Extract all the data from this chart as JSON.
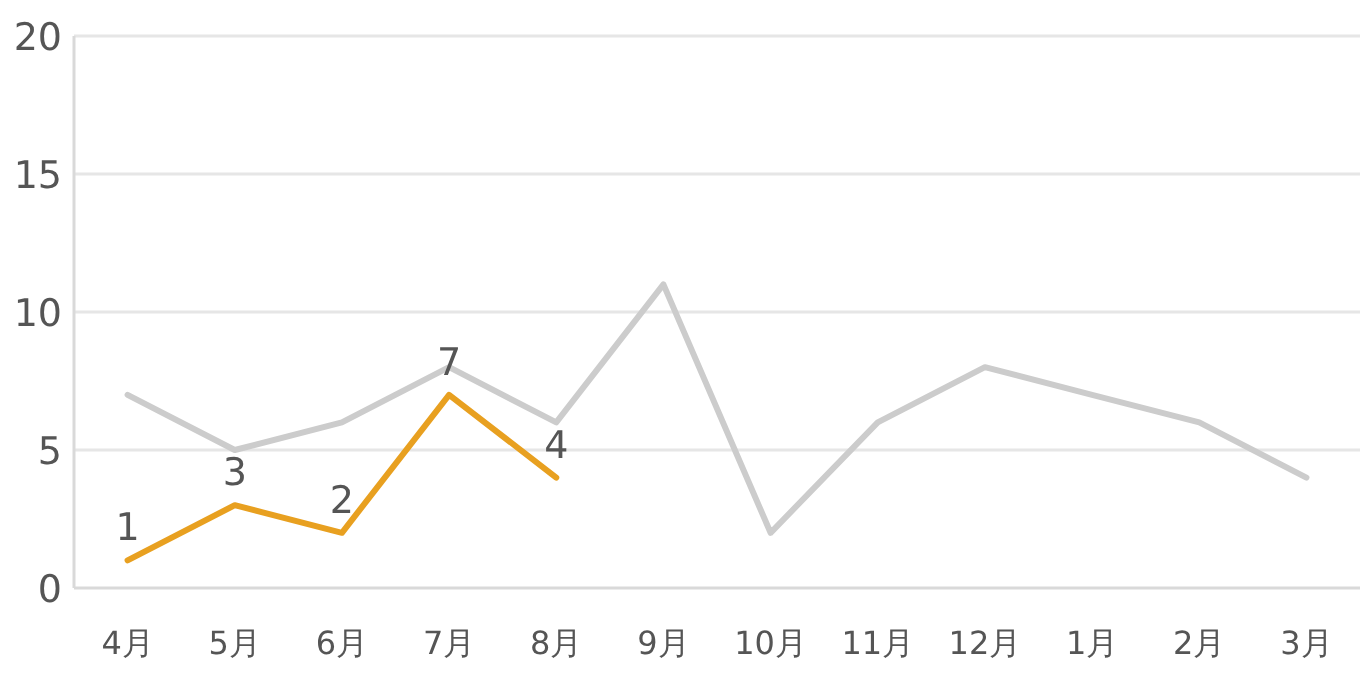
{
  "chart_data": {
    "type": "line",
    "categories": [
      "4月",
      "5月",
      "6月",
      "7月",
      "8月",
      "9月",
      "10月",
      "11月",
      "12月",
      "1月",
      "2月",
      "3月"
    ],
    "series": [
      {
        "color": "#cccccc",
        "values": [
          7,
          5,
          6,
          8,
          6,
          11,
          2,
          6,
          8,
          7,
          6,
          4
        ]
      },
      {
        "color": "#e8a020",
        "values": [
          1,
          3,
          2,
          7,
          4,
          null,
          null,
          null,
          null,
          null,
          null,
          null
        ],
        "value_labels": [
          "1",
          "3",
          "2",
          "7",
          "4",
          null,
          null,
          null,
          null,
          null,
          null,
          null
        ]
      }
    ],
    "ylim": [
      0,
      20
    ],
    "yticks": [
      0,
      5,
      10,
      15,
      20
    ],
    "grid": "y",
    "marker": "none",
    "line_style": "solid"
  }
}
